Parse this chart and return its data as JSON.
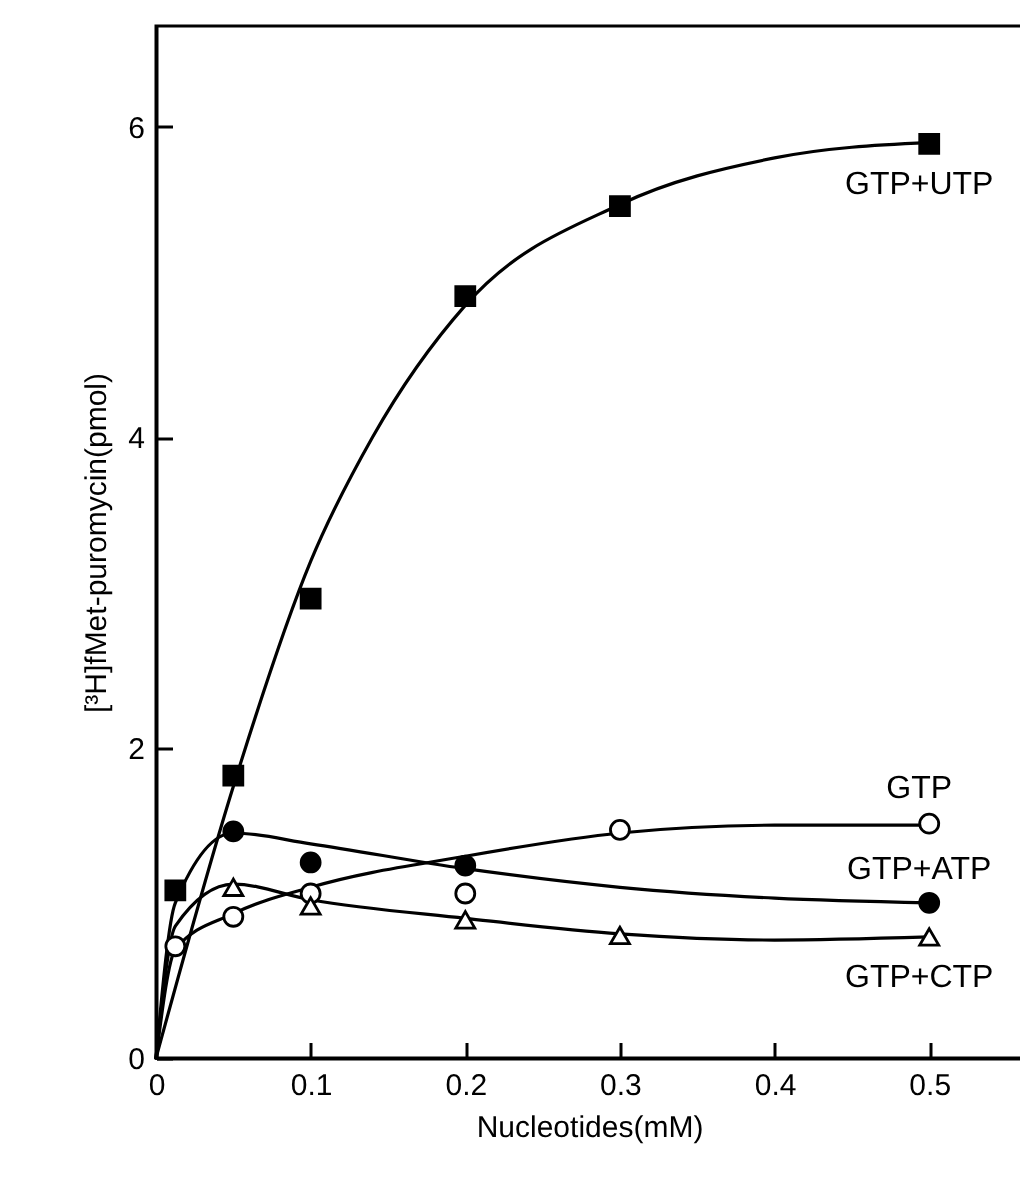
{
  "chart_data": {
    "type": "scatter",
    "xlabel": "Nucleotides(mM)",
    "ylabel": "[³H]fMet-puromycin(pmol)",
    "xlim": [
      0,
      0.56
    ],
    "ylim": [
      0,
      6.65
    ],
    "xticks": [
      0,
      0.1,
      0.2,
      0.3,
      0.4,
      0.5
    ],
    "yticks": [
      0,
      2,
      4,
      6
    ],
    "grid": false,
    "series": [
      {
        "type": "line",
        "color": "#000000",
        "marker": "none",
        "x": [
          0,
          0.05,
          0.1,
          0.14,
          0.2,
          0.3,
          0.4,
          0.5
        ],
        "values": [
          0,
          1.75,
          3.2,
          4.0,
          4.85,
          5.5,
          5.8,
          5.9
        ]
      },
      {
        "type": "line",
        "color": "#000000",
        "marker": "none",
        "x": [
          0,
          0.0125,
          0.05,
          0.1,
          0.2,
          0.3,
          0.4,
          0.5
        ],
        "values": [
          0,
          0.7,
          0.93,
          1.1,
          1.3,
          1.45,
          1.5,
          1.5
        ]
      },
      {
        "type": "line",
        "color": "#000000",
        "marker": "none",
        "x": [
          0,
          0.0125,
          0.05,
          0.1,
          0.2,
          0.3,
          0.4,
          0.5
        ],
        "values": [
          0,
          1.0,
          1.45,
          1.38,
          1.22,
          1.1,
          1.03,
          1.0
        ]
      },
      {
        "type": "line",
        "color": "#000000",
        "marker": "none",
        "x": [
          0,
          0.0125,
          0.05,
          0.1,
          0.2,
          0.3,
          0.4,
          0.5
        ],
        "values": [
          0,
          0.85,
          1.12,
          1.02,
          0.9,
          0.8,
          0.76,
          0.78
        ]
      },
      {
        "type": "scatter",
        "name": "GTP+UTP",
        "color": "#000000",
        "marker": "square",
        "x": [
          0.0125,
          0.05,
          0.1,
          0.2,
          0.3,
          0.5
        ],
        "values": [
          1.08,
          1.82,
          2.96,
          4.91,
          5.49,
          5.89
        ]
      },
      {
        "type": "scatter",
        "name": "GTP",
        "color": "#ffffff",
        "marker": "circle",
        "x": [
          0.0125,
          0.05,
          0.1,
          0.2,
          0.3,
          0.5
        ],
        "values": [
          0.72,
          0.91,
          1.06,
          1.06,
          1.47,
          1.51
        ]
      },
      {
        "type": "scatter",
        "name": "GTP+ATP",
        "color": "#000000",
        "marker": "circle",
        "x": [
          0.05,
          0.1,
          0.2,
          0.5
        ],
        "values": [
          1.46,
          1.26,
          1.24,
          1.0
        ]
      },
      {
        "type": "scatter",
        "name": "GTP+CTP",
        "color": "#ffffff",
        "marker": "triangle",
        "x": [
          0.05,
          0.1,
          0.2,
          0.3,
          0.5
        ],
        "values": [
          1.1,
          0.98,
          0.89,
          0.79,
          0.78
        ]
      }
    ]
  }
}
